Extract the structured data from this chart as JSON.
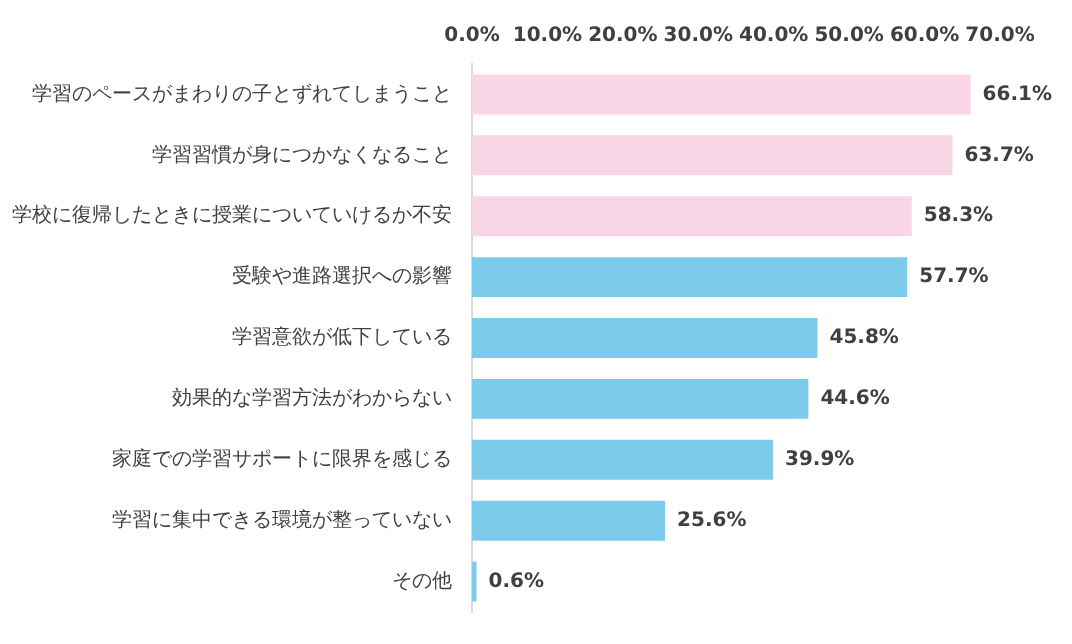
{
  "chart_data": {
    "type": "bar",
    "orientation": "horizontal",
    "categories": [
      "学習のペースがまわりの子とずれてしまうこと",
      "学習習慣が身につかなくなること",
      "学校に復帰したときに授業についていけるか不安",
      "受験や進路選択への影響",
      "学習意欲が低下している",
      "効果的な学習方法がわからない",
      "家庭での学習サポートに限界を感じる",
      "学習に集中できる環境が整っていない",
      "その他"
    ],
    "values": [
      66.1,
      63.7,
      58.3,
      57.7,
      45.8,
      44.6,
      39.9,
      25.6,
      0.6
    ],
    "colors": [
      "#f9d6e6",
      "#f9d6e6",
      "#f9d6e6",
      "#7ccbea",
      "#7ccbea",
      "#7ccbea",
      "#7ccbea",
      "#7ccbea",
      "#7ccbea"
    ],
    "value_labels": [
      "66.1%",
      "63.7%",
      "58.3%",
      "57.7%",
      "45.8%",
      "44.6%",
      "39.9%",
      "25.6%",
      "0.6%"
    ],
    "xlim": [
      0,
      70
    ],
    "xticks": [
      {
        "value": 0,
        "label": "0.0%"
      },
      {
        "value": 10,
        "label": "10.0%"
      },
      {
        "value": 20,
        "label": "20.0%"
      },
      {
        "value": 30,
        "label": "30.0%"
      },
      {
        "value": 40,
        "label": "40.0%"
      },
      {
        "value": 50,
        "label": "50.0%"
      },
      {
        "value": 60,
        "label": "60.0%"
      },
      {
        "value": 70,
        "label": "70.0%"
      }
    ],
    "grid": false,
    "legend": false
  }
}
